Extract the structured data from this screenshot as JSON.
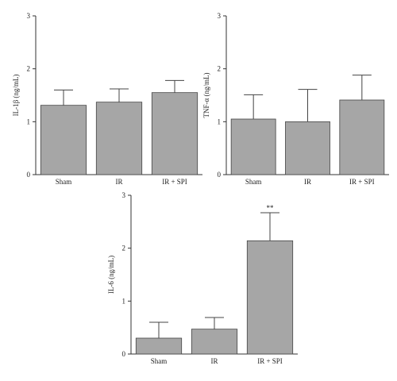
{
  "chart_data": [
    {
      "type": "bar",
      "y_label": "IL-1β (ng/mL)",
      "categories": [
        "Sham",
        "IR",
        "IR + SPI"
      ],
      "values": [
        1.31,
        1.37,
        1.55
      ],
      "errors": [
        0.29,
        0.25,
        0.23
      ],
      "color": "#a6a6a6",
      "ylim": [
        0,
        3
      ],
      "yticks": [
        0,
        1,
        2,
        3
      ]
    },
    {
      "type": "bar",
      "y_label": "TNF-α (ng/mL)",
      "categories": [
        "Sham",
        "IR",
        "IR + SPI"
      ],
      "values": [
        1.05,
        1.0,
        1.41
      ],
      "errors": [
        0.46,
        0.61,
        0.47
      ],
      "color": "#a6a6a6",
      "ylim": [
        0,
        3
      ],
      "yticks": [
        0,
        1,
        2,
        3
      ]
    },
    {
      "type": "bar",
      "y_label": "IL-6 (ng/mL)",
      "categories": [
        "Sham",
        "IR",
        "IR + SPI"
      ],
      "values": [
        0.3,
        0.47,
        2.14
      ],
      "errors": [
        0.3,
        0.22,
        0.53
      ],
      "color": "#a6a6a6",
      "value_annotations": [
        null,
        null,
        "**"
      ],
      "ylim": [
        0,
        3
      ],
      "yticks": [
        0,
        1,
        2,
        3
      ]
    }
  ]
}
